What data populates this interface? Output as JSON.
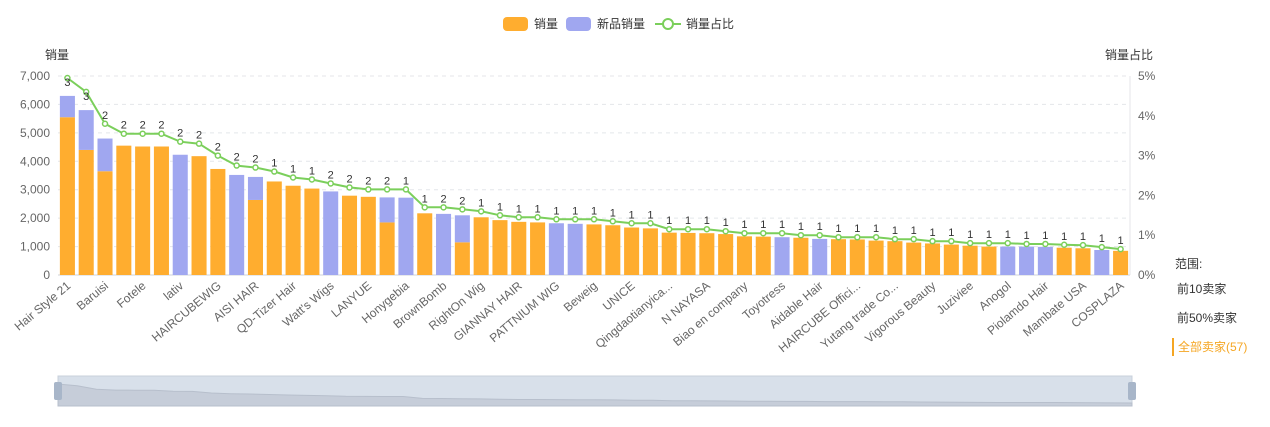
{
  "legend": {
    "sales": "销量",
    "new_sales": "新品销量",
    "share": "销量占比"
  },
  "scope": {
    "title": "范围:",
    "options": [
      "前10卖家",
      "前50%卖家",
      "全部卖家(57)"
    ],
    "active_index": 2
  },
  "colors": {
    "sales": "#ffad2f",
    "new_sales": "#a0a7f0",
    "share": "#7bcf5b",
    "zoom_fill": "#d8e0ea",
    "zoom_area": "#c6cdd9",
    "handle": "#a8b6c9"
  },
  "chart_data": {
    "type": "bar",
    "y_left_label": "销量",
    "y_right_label": "销量占比",
    "y_left_range": [
      0,
      7000
    ],
    "y_left_ticks": [
      "0",
      "1,000",
      "2,000",
      "3,000",
      "4,000",
      "5,000",
      "6,000",
      "7,000"
    ],
    "y_right_range": [
      0,
      5
    ],
    "y_right_ticks": [
      "0%",
      "1%",
      "2%",
      "3%",
      "4%",
      "5%"
    ],
    "grid": true,
    "legend_position": "top-center",
    "x_tick_labels": [
      "Hair Style 21",
      "Baruisi",
      "Fotele",
      "lativ",
      "HAIRCUBEWIG",
      "AISI HAIR",
      "QD-Tizer Hair",
      "Watt's Wigs",
      "LANYUE",
      "Honygebia",
      "BrownBomb",
      "RightOn Wig",
      "GIANNAY HAIR",
      "PATTNIUM WIG",
      "Beweig",
      "UNICE",
      "Qingdaotianyica...",
      "N NAYASA",
      "Biao en company",
      "Toyotress",
      "Aidable Hair",
      "HAIRCUBE Offici...",
      "Yutang trade Co...",
      "Vigorous Beauty",
      "Juziviee",
      "Anogol",
      "Piolamdo Hair",
      "Mambate USA",
      "COSPLAZA"
    ],
    "totals": [
      6300,
      5800,
      4800,
      4550,
      4520,
      4520,
      4230,
      4180,
      3730,
      3520,
      3450,
      3290,
      3140,
      3040,
      2940,
      2790,
      2750,
      2730,
      2720,
      2170,
      2150,
      2100,
      2030,
      1930,
      1870,
      1850,
      1820,
      1800,
      1780,
      1750,
      1670,
      1640,
      1490,
      1480,
      1470,
      1440,
      1360,
      1350,
      1330,
      1310,
      1270,
      1260,
      1250,
      1210,
      1190,
      1140,
      1110,
      1070,
      1030,
      1000,
      1000,
      1000,
      990,
      960,
      940,
      880,
      850
    ],
    "sales": [
      5550,
      4400,
      3650,
      4550,
      4520,
      4520,
      0,
      4180,
      3730,
      0,
      2640,
      3290,
      3140,
      3040,
      0,
      2790,
      2750,
      1850,
      0,
      2170,
      0,
      1150,
      2030,
      1930,
      1870,
      1850,
      0,
      0,
      1780,
      1750,
      1670,
      1640,
      1490,
      1480,
      1470,
      1440,
      1360,
      1350,
      0,
      1310,
      0,
      1260,
      1250,
      1210,
      1190,
      1140,
      1110,
      1070,
      1030,
      1000,
      0,
      0,
      0,
      960,
      940,
      0,
      850
    ],
    "new_sales": [
      750,
      1400,
      1150,
      0,
      0,
      0,
      4230,
      0,
      0,
      3520,
      810,
      0,
      0,
      0,
      2940,
      0,
      0,
      880,
      2720,
      0,
      2150,
      950,
      0,
      0,
      0,
      0,
      1820,
      1800,
      0,
      0,
      0,
      0,
      0,
      0,
      0,
      0,
      0,
      0,
      1330,
      0,
      1270,
      0,
      0,
      0,
      0,
      0,
      0,
      0,
      0,
      0,
      1000,
      1000,
      990,
      0,
      0,
      880,
      0
    ],
    "share_percent": [
      4.95,
      4.6,
      3.8,
      3.55,
      3.55,
      3.55,
      3.35,
      3.3,
      3.0,
      2.75,
      2.7,
      2.6,
      2.45,
      2.4,
      2.3,
      2.2,
      2.15,
      2.15,
      2.15,
      1.7,
      1.7,
      1.65,
      1.6,
      1.5,
      1.45,
      1.45,
      1.4,
      1.4,
      1.4,
      1.35,
      1.3,
      1.3,
      1.15,
      1.15,
      1.15,
      1.1,
      1.05,
      1.05,
      1.05,
      1.0,
      1.0,
      0.95,
      0.95,
      0.95,
      0.9,
      0.9,
      0.85,
      0.85,
      0.8,
      0.8,
      0.8,
      0.78,
      0.78,
      0.76,
      0.75,
      0.7,
      0.65
    ],
    "share_labels": [
      "3",
      "3",
      "2",
      "2",
      "2",
      "2",
      "2",
      "2",
      "2",
      "2",
      "2",
      "1",
      "1",
      "1",
      "2",
      "2",
      "2",
      "2",
      "1",
      "1",
      "2",
      "2",
      "1",
      "1",
      "1",
      "1",
      "1",
      "1",
      "1",
      "1",
      "1",
      "1",
      "1",
      "1",
      "1",
      "1",
      "1",
      "1",
      "1",
      "1",
      "1",
      "1",
      "1",
      "1",
      "1",
      "1",
      "1",
      "1",
      "1",
      "1",
      "1",
      "1",
      "1",
      "1",
      "1",
      "1",
      "1"
    ]
  }
}
